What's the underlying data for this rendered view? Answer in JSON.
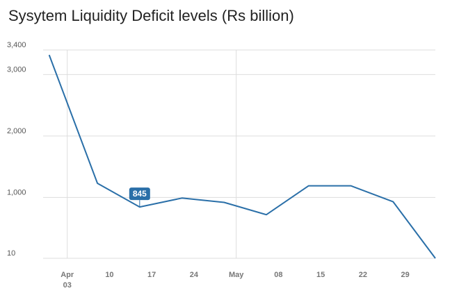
{
  "chart_data": {
    "type": "line",
    "title": "Sysytem Liquidity Deficit levels (Rs billion)",
    "xlabel": "",
    "ylabel": "",
    "y_ticks": [
      "10",
      "1,000",
      "2,000",
      "3,000",
      "3,400"
    ],
    "x_ticks": [
      {
        "label": "Apr",
        "sublabel": "03",
        "date": "2019-04-03"
      },
      {
        "label": "10",
        "date": "2019-04-10"
      },
      {
        "label": "17",
        "date": "2019-04-17"
      },
      {
        "label": "24",
        "date": "2019-04-24"
      },
      {
        "label": "May",
        "date": "2019-05-01"
      },
      {
        "label": "08",
        "date": "2019-05-08"
      },
      {
        "label": "15",
        "date": "2019-05-15"
      },
      {
        "label": "22",
        "date": "2019-05-22"
      },
      {
        "label": "29",
        "date": "2019-05-29"
      }
    ],
    "points": [
      {
        "date": "2019-03-31",
        "value": 3320
      },
      {
        "date": "2019-04-08",
        "value": 1230
      },
      {
        "date": "2019-04-15",
        "value": 845
      },
      {
        "date": "2019-04-22",
        "value": 990
      },
      {
        "date": "2019-04-29",
        "value": 920
      },
      {
        "date": "2019-05-06",
        "value": 720
      },
      {
        "date": "2019-05-13",
        "value": 1190
      },
      {
        "date": "2019-05-20",
        "value": 1190
      },
      {
        "date": "2019-05-27",
        "value": 930
      },
      {
        "date": "2019-06-03",
        "value": 10
      }
    ],
    "ylim": [
      10,
      3400
    ],
    "xlim": [
      "2019-03-30",
      "2019-06-03"
    ],
    "highlight": {
      "date": "2019-04-15",
      "label": "845"
    },
    "grid": true,
    "legend": "none",
    "colors": {
      "line": "#2a6fa8",
      "grid": "#dddddd",
      "tooltip": "#2a6fa8"
    }
  }
}
